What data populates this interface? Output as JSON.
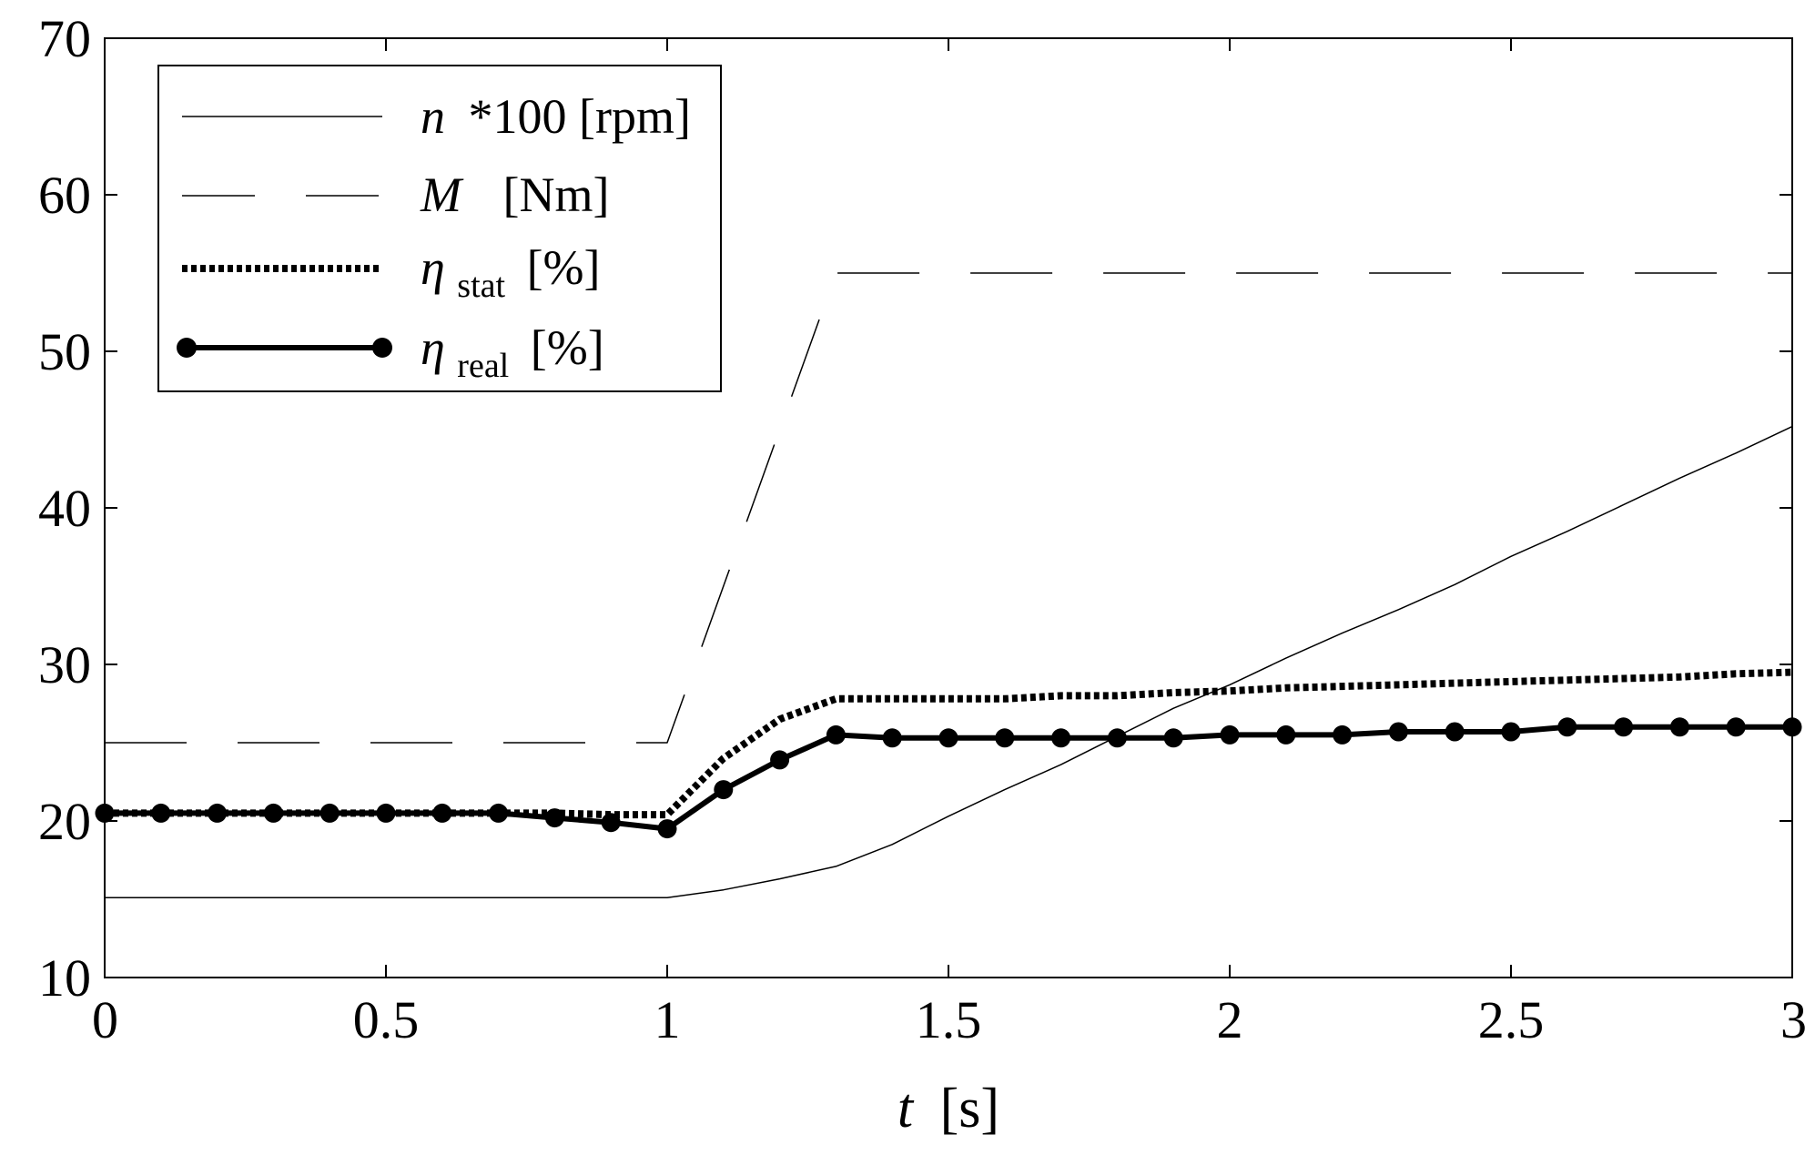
{
  "chart_data": {
    "type": "line",
    "title": "",
    "xlabel": {
      "var": "t",
      "unit": "[s]"
    },
    "ylabel": "",
    "xlim": [
      0,
      3
    ],
    "ylim": [
      10,
      70
    ],
    "xticks": [
      0,
      0.5,
      1,
      1.5,
      2,
      2.5,
      3
    ],
    "xtick_labels": [
      "0",
      "0.5",
      "1",
      "1.5",
      "2",
      "2.5",
      "3"
    ],
    "yticks": [
      10,
      20,
      30,
      40,
      50,
      60,
      70
    ],
    "ytick_labels": [
      "10",
      "20",
      "30",
      "40",
      "50",
      "60",
      "70"
    ],
    "grid": false,
    "legend_position": "top-left",
    "series": [
      {
        "name": "n *100 [rpm]",
        "legend": {
          "symbol": "n",
          "label": "*100 [rpm]",
          "sub": ""
        },
        "style": "thin-solid",
        "x": [
          0,
          1,
          1.1,
          1.2,
          1.3,
          1.4,
          1.5,
          1.6,
          1.7,
          1.8,
          1.9,
          2.0,
          2.1,
          2.2,
          2.3,
          2.4,
          2.5,
          2.6,
          2.7,
          2.8,
          2.9,
          3.0
        ],
        "values": [
          15.1,
          15.1,
          15.6,
          16.3,
          17.1,
          18.5,
          20.3,
          22.0,
          23.6,
          25.4,
          27.2,
          28.7,
          30.4,
          32.0,
          33.5,
          35.1,
          36.9,
          38.5,
          40.2,
          41.9,
          43.5,
          45.2
        ]
      },
      {
        "name": "M [Nm]",
        "legend": {
          "symbol": "M",
          "label": "[Nm]",
          "sub": ""
        },
        "style": "long-dash",
        "x": [
          0,
          1,
          1.3,
          3
        ],
        "values": [
          25.0,
          25.0,
          55.0,
          55.0
        ]
      },
      {
        "name": "η stat [%]",
        "legend": {
          "symbol": "η",
          "label": "[%]",
          "sub": "stat"
        },
        "style": "dotted-thick",
        "x": [
          0,
          0.7,
          0.8,
          0.9,
          1.0,
          1.1,
          1.2,
          1.3,
          1.4,
          1.5,
          1.6,
          1.7,
          1.8,
          1.9,
          2.0,
          2.1,
          2.2,
          2.3,
          2.4,
          2.5,
          2.6,
          2.7,
          2.8,
          2.9,
          3.0
        ],
        "values": [
          20.5,
          20.5,
          20.5,
          20.4,
          20.4,
          24.0,
          26.5,
          27.8,
          27.8,
          27.8,
          27.8,
          28.0,
          28.0,
          28.2,
          28.3,
          28.5,
          28.6,
          28.7,
          28.8,
          28.9,
          29.0,
          29.1,
          29.2,
          29.4,
          29.5
        ]
      },
      {
        "name": "η real [%]",
        "legend": {
          "symbol": "η",
          "label": "[%]",
          "sub": "real"
        },
        "style": "solid-thick-markers",
        "x": [
          0,
          0.1,
          0.2,
          0.3,
          0.4,
          0.5,
          0.6,
          0.7,
          0.8,
          0.9,
          1.0,
          1.1,
          1.2,
          1.3,
          1.4,
          1.5,
          1.6,
          1.7,
          1.8,
          1.9,
          2.0,
          2.1,
          2.2,
          2.3,
          2.4,
          2.5,
          2.6,
          2.7,
          2.8,
          2.9,
          3.0
        ],
        "values": [
          20.5,
          20.5,
          20.5,
          20.5,
          20.5,
          20.5,
          20.5,
          20.5,
          20.2,
          19.9,
          19.5,
          22.0,
          23.9,
          25.5,
          25.3,
          25.3,
          25.3,
          25.3,
          25.3,
          25.3,
          25.5,
          25.5,
          25.5,
          25.7,
          25.7,
          25.7,
          26.0,
          26.0,
          26.0,
          26.0,
          26.0
        ]
      }
    ]
  }
}
